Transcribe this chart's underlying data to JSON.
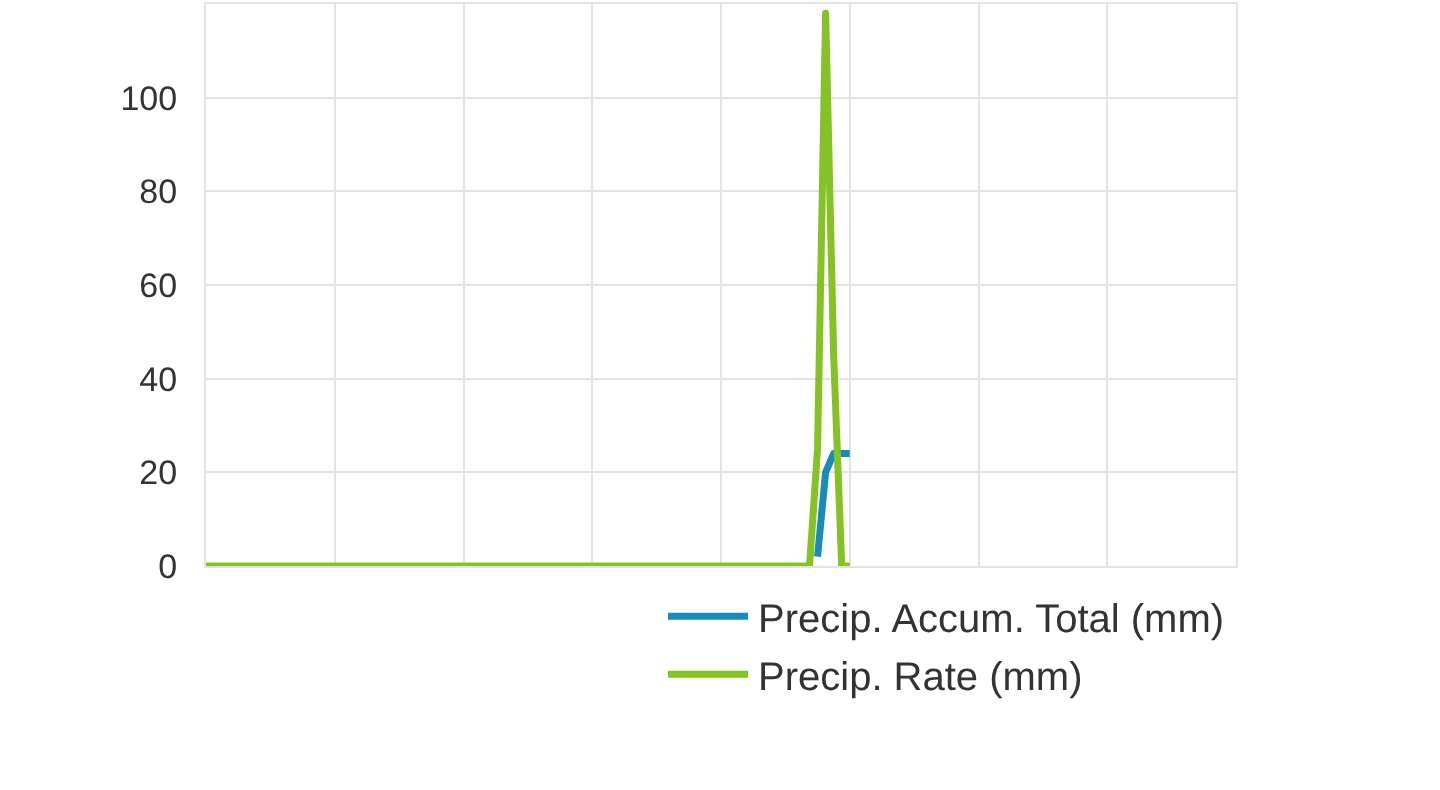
{
  "chart_data": {
    "type": "line",
    "categories": [
      null,
      null,
      null,
      null,
      null,
      null,
      null,
      null,
      null,
      null,
      null,
      null,
      null,
      null,
      null,
      null,
      null,
      null,
      null,
      null,
      null,
      null,
      null,
      null,
      null,
      null,
      null,
      null,
      null,
      null,
      null,
      null,
      null,
      null,
      null,
      null,
      null,
      null,
      null,
      null,
      null,
      null,
      null,
      null,
      null,
      null,
      null,
      null,
      null,
      null,
      null,
      null,
      null,
      null,
      null,
      null,
      null,
      null,
      null,
      null,
      null,
      null,
      null,
      null,
      null,
      null,
      null,
      null,
      null,
      null,
      null,
      null,
      null,
      null,
      null,
      null,
      null,
      null,
      null,
      null,
      null,
      null,
      null,
      null,
      null,
      null,
      null,
      null,
      null,
      null,
      null,
      null,
      null,
      null,
      null,
      null,
      null,
      null,
      null,
      null,
      null,
      null,
      null,
      null,
      null,
      null,
      null,
      null,
      null,
      null,
      null,
      null,
      null,
      null,
      null,
      null,
      null,
      null,
      null,
      null,
      null,
      null,
      null,
      null,
      null,
      null,
      null,
      null,
      null
    ],
    "ylim": [
      0,
      120
    ],
    "yticks": [
      0,
      20,
      40,
      60,
      80,
      100
    ],
    "tick_labels": "y",
    "grid": true,
    "legend": "bottom right",
    "marker": "none",
    "line_style": "solid",
    "series": [
      {
        "name": "Precip. Accum. Total (mm)",
        "color": "#1a8bb9",
        "values": [
          null,
          null,
          null,
          null,
          null,
          null,
          null,
          null,
          null,
          null,
          null,
          null,
          null,
          null,
          null,
          null,
          null,
          null,
          null,
          null,
          null,
          null,
          null,
          null,
          null,
          null,
          null,
          null,
          null,
          null,
          null,
          null,
          null,
          null,
          null,
          null,
          null,
          null,
          null,
          null,
          null,
          null,
          null,
          null,
          null,
          null,
          null,
          null,
          null,
          null,
          null,
          null,
          null,
          null,
          null,
          null,
          null,
          null,
          null,
          null,
          null,
          null,
          null,
          null,
          null,
          null,
          null,
          null,
          null,
          null,
          null,
          null,
          null,
          null,
          null,
          null,
          2,
          20,
          24,
          24,
          24,
          null,
          null,
          null,
          null,
          null,
          null,
          null,
          null,
          null,
          null,
          null,
          null,
          null,
          null,
          null,
          null,
          null,
          null,
          null,
          null,
          null,
          null,
          null,
          null,
          null,
          null,
          null,
          null,
          null,
          null,
          null,
          null,
          null,
          null,
          null,
          null,
          null,
          null,
          null,
          null,
          null,
          null,
          null,
          null,
          null,
          null,
          null,
          null
        ]
      },
      {
        "name": "Precip. Rate (mm)",
        "color": "#84c225",
        "values": [
          0,
          0,
          0,
          0,
          0,
          0,
          0,
          0,
          0,
          0,
          0,
          0,
          0,
          0,
          0,
          0,
          0,
          0,
          0,
          0,
          0,
          0,
          0,
          0,
          0,
          0,
          0,
          0,
          0,
          0,
          0,
          0,
          0,
          0,
          0,
          0,
          0,
          0,
          0,
          0,
          0,
          0,
          0,
          0,
          0,
          0,
          0,
          0,
          0,
          0,
          0,
          0,
          0,
          0,
          0,
          0,
          0,
          0,
          0,
          0,
          0,
          0,
          0,
          0,
          0,
          0,
          0,
          0,
          0,
          0,
          0,
          0,
          0,
          0,
          0,
          0,
          25,
          118,
          45,
          0,
          0,
          null,
          null,
          null,
          null,
          null,
          null,
          null,
          null,
          null,
          null,
          null,
          null,
          null,
          null,
          null,
          null,
          null,
          null,
          null,
          null,
          null,
          null,
          null,
          null,
          null,
          null,
          null,
          null,
          null,
          null,
          null,
          null,
          null,
          null,
          null,
          null,
          null,
          null,
          null,
          null,
          null,
          null,
          null,
          null,
          null,
          null,
          null,
          null
        ]
      }
    ]
  }
}
